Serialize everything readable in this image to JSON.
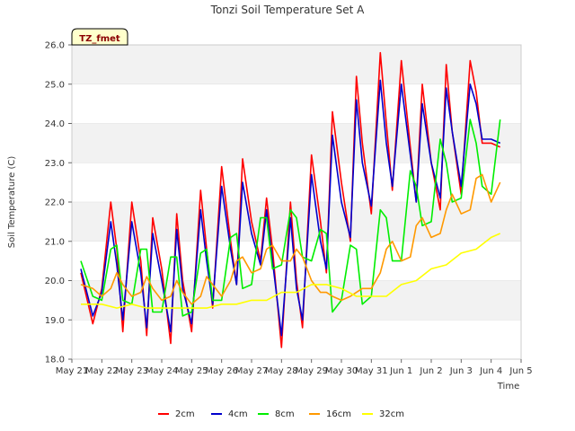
{
  "chart_data": {
    "type": "line",
    "title": "Tonzi Soil Temperature Set A",
    "xlabel": "Time",
    "ylabel": "Soil Temperature (C)",
    "ylim": [
      18.0,
      26.0
    ],
    "yticks": [
      "18.0",
      "19.0",
      "20.0",
      "21.0",
      "22.0",
      "23.0",
      "24.0",
      "25.0",
      "26.0"
    ],
    "xlim": [
      0,
      15
    ],
    "xticks": [
      "May 21",
      "May 22",
      "May 23",
      "May 24",
      "May 25",
      "May 26",
      "May 27",
      "May 28",
      "May 29",
      "May 30",
      "May 31",
      "Jun 1",
      "Jun 2",
      "Jun 3",
      "Jun 4",
      "Jun 5"
    ],
    "x_units": "days since May 21",
    "grid": "horizontal bands",
    "legend_position": "bottom-center",
    "annotation": "TZ_fmet",
    "series": [
      {
        "name": "2cm",
        "color": "#ff0000",
        "x": [
          0.3,
          0.7,
          1.0,
          1.3,
          1.5,
          1.7,
          2.0,
          2.3,
          2.5,
          2.7,
          3.0,
          3.3,
          3.5,
          3.7,
          4.0,
          4.3,
          4.5,
          4.7,
          5.0,
          5.3,
          5.5,
          5.7,
          6.0,
          6.3,
          6.5,
          6.7,
          7.0,
          7.3,
          7.5,
          7.7,
          8.0,
          8.3,
          8.5,
          8.7,
          9.0,
          9.3,
          9.5,
          9.7,
          10.0,
          10.3,
          10.5,
          10.7,
          11.0,
          11.3,
          11.5,
          11.7,
          12.0,
          12.3,
          12.5,
          12.7,
          13.0,
          13.3,
          13.5,
          13.7,
          14.0,
          14.3
        ],
        "y": [
          20.2,
          18.9,
          19.8,
          22.0,
          20.8,
          18.7,
          22.0,
          20.5,
          18.6,
          21.6,
          20.3,
          18.4,
          21.7,
          20.0,
          18.7,
          22.3,
          20.8,
          19.3,
          22.9,
          21.0,
          19.9,
          23.1,
          21.5,
          20.5,
          22.1,
          20.8,
          18.3,
          22.0,
          20.0,
          18.8,
          23.2,
          21.5,
          20.2,
          24.3,
          22.5,
          21.0,
          25.2,
          23.5,
          21.7,
          25.8,
          24.0,
          22.3,
          25.6,
          23.4,
          22.0,
          25.0,
          23.0,
          21.8,
          25.5,
          23.8,
          22.2,
          25.6,
          24.8,
          23.5,
          23.5,
          23.4
        ]
      },
      {
        "name": "4cm",
        "color": "#0000cc",
        "x": [
          0.3,
          0.7,
          1.0,
          1.3,
          1.5,
          1.7,
          2.0,
          2.3,
          2.5,
          2.7,
          3.0,
          3.3,
          3.5,
          3.7,
          4.0,
          4.3,
          4.5,
          4.7,
          5.0,
          5.3,
          5.5,
          5.7,
          6.0,
          6.3,
          6.5,
          6.7,
          7.0,
          7.3,
          7.5,
          7.7,
          8.0,
          8.3,
          8.5,
          8.7,
          9.0,
          9.3,
          9.5,
          9.7,
          10.0,
          10.3,
          10.5,
          10.7,
          11.0,
          11.3,
          11.5,
          11.7,
          12.0,
          12.3,
          12.5,
          12.7,
          13.0,
          13.3,
          13.5,
          13.7,
          14.0,
          14.3
        ],
        "y": [
          20.3,
          19.1,
          19.7,
          21.5,
          20.4,
          19.0,
          21.5,
          20.2,
          18.8,
          21.2,
          20.0,
          18.7,
          21.3,
          19.8,
          18.9,
          21.8,
          20.5,
          19.4,
          22.4,
          20.8,
          19.9,
          22.5,
          21.2,
          20.4,
          21.8,
          20.5,
          18.6,
          21.6,
          19.8,
          19.0,
          22.7,
          21.0,
          20.3,
          23.7,
          22.0,
          21.1,
          24.6,
          23.0,
          21.9,
          25.1,
          23.5,
          22.4,
          25.0,
          23.2,
          22.0,
          24.5,
          23.0,
          22.1,
          24.9,
          23.8,
          22.4,
          25.0,
          24.5,
          23.6,
          23.6,
          23.5
        ]
      },
      {
        "name": "8cm",
        "color": "#00ee00",
        "x": [
          0.3,
          0.7,
          1.0,
          1.3,
          1.5,
          1.7,
          2.0,
          2.3,
          2.5,
          2.7,
          3.0,
          3.3,
          3.5,
          3.7,
          4.0,
          4.3,
          4.5,
          4.7,
          5.0,
          5.3,
          5.5,
          5.7,
          6.0,
          6.3,
          6.5,
          6.7,
          7.0,
          7.3,
          7.5,
          7.7,
          8.0,
          8.3,
          8.5,
          8.7,
          9.0,
          9.3,
          9.5,
          9.7,
          10.0,
          10.3,
          10.5,
          10.7,
          11.0,
          11.3,
          11.5,
          11.7,
          12.0,
          12.3,
          12.5,
          12.7,
          13.0,
          13.3,
          13.5,
          13.7,
          14.0,
          14.3
        ],
        "y": [
          20.5,
          19.6,
          19.5,
          20.8,
          20.9,
          19.5,
          19.4,
          20.8,
          20.8,
          19.2,
          19.2,
          20.6,
          20.6,
          19.1,
          19.2,
          20.7,
          20.8,
          19.5,
          19.5,
          21.1,
          21.2,
          19.8,
          19.9,
          21.6,
          21.6,
          20.3,
          20.4,
          21.8,
          21.6,
          20.6,
          20.5,
          21.3,
          21.2,
          19.2,
          19.5,
          20.9,
          20.8,
          19.4,
          19.6,
          21.8,
          21.6,
          20.5,
          20.5,
          22.8,
          22.4,
          21.4,
          21.5,
          23.6,
          23.0,
          22.0,
          22.1,
          24.1,
          23.5,
          22.4,
          22.2,
          24.1
        ]
      },
      {
        "name": "16cm",
        "color": "#ff9900",
        "x": [
          0.3,
          0.7,
          1.0,
          1.3,
          1.5,
          1.7,
          2.0,
          2.3,
          2.5,
          2.7,
          3.0,
          3.3,
          3.5,
          3.7,
          4.0,
          4.3,
          4.5,
          4.7,
          5.0,
          5.3,
          5.5,
          5.7,
          6.0,
          6.3,
          6.5,
          6.7,
          7.0,
          7.3,
          7.5,
          7.7,
          8.0,
          8.3,
          8.5,
          8.7,
          9.0,
          9.3,
          9.5,
          9.7,
          10.0,
          10.3,
          10.5,
          10.7,
          11.0,
          11.3,
          11.5,
          11.7,
          12.0,
          12.3,
          12.5,
          12.7,
          13.0,
          13.3,
          13.5,
          13.7,
          14.0,
          14.3
        ],
        "y": [
          19.9,
          19.8,
          19.6,
          19.8,
          20.2,
          19.9,
          19.6,
          19.7,
          20.1,
          19.8,
          19.5,
          19.6,
          20.0,
          19.7,
          19.4,
          19.6,
          20.1,
          19.9,
          19.6,
          20.0,
          20.5,
          20.6,
          20.2,
          20.3,
          20.8,
          20.9,
          20.5,
          20.5,
          20.8,
          20.6,
          20.0,
          19.7,
          19.7,
          19.6,
          19.5,
          19.6,
          19.7,
          19.8,
          19.8,
          20.2,
          20.8,
          21.0,
          20.5,
          20.6,
          21.4,
          21.6,
          21.1,
          21.2,
          21.8,
          22.2,
          21.7,
          21.8,
          22.6,
          22.7,
          22.0,
          22.5
        ]
      },
      {
        "name": "32cm",
        "color": "#ffff00",
        "x": [
          0.3,
          1.0,
          1.5,
          2.0,
          2.5,
          3.0,
          3.5,
          4.0,
          4.5,
          5.0,
          5.5,
          6.0,
          6.5,
          7.0,
          7.5,
          8.0,
          8.5,
          9.0,
          9.5,
          10.0,
          10.5,
          11.0,
          11.5,
          12.0,
          12.5,
          13.0,
          13.5,
          14.0,
          14.3
        ],
        "y": [
          19.4,
          19.4,
          19.3,
          19.4,
          19.3,
          19.3,
          19.3,
          19.3,
          19.3,
          19.4,
          19.4,
          19.5,
          19.5,
          19.7,
          19.7,
          19.9,
          19.9,
          19.8,
          19.6,
          19.6,
          19.6,
          19.9,
          20.0,
          20.3,
          20.4,
          20.7,
          20.8,
          21.1,
          21.2
        ]
      }
    ]
  }
}
